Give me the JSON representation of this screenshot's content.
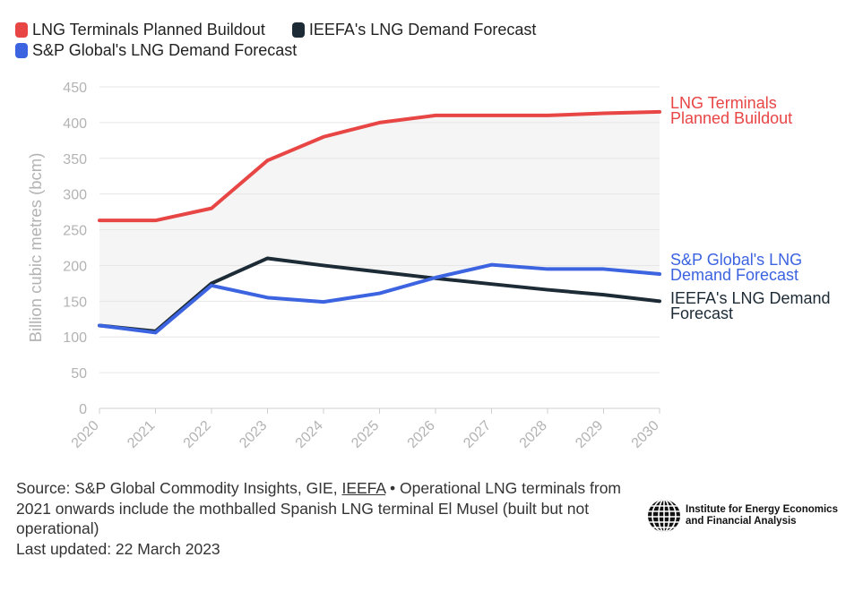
{
  "chart_data": {
    "type": "line",
    "title": "",
    "xlabel": "",
    "ylabel": "Billion cubic metres (bcm)",
    "ylim": [
      0,
      450
    ],
    "yticks": [
      0,
      50,
      100,
      150,
      200,
      250,
      300,
      350,
      400,
      450
    ],
    "x": [
      "2020",
      "2021",
      "2022",
      "2023",
      "2024",
      "2025",
      "2026",
      "2027",
      "2028",
      "2029",
      "2030"
    ],
    "grid": true,
    "legend_position": "top-left",
    "series": [
      {
        "name": "LNG Terminals Planned Buildout",
        "end_label": [
          "LNG Terminals",
          "Planned Buildout"
        ],
        "color": "#e84545",
        "values": [
          263,
          263,
          280,
          347,
          380,
          400,
          410,
          410,
          410,
          413,
          415
        ]
      },
      {
        "name": "IEEFA's LNG Demand Forecast",
        "end_label": [
          "IEEFA's LNG Demand",
          "Forecast"
        ],
        "color": "#1c2b35",
        "values": [
          116,
          108,
          175,
          210,
          200,
          191,
          182,
          174,
          166,
          159,
          150
        ]
      },
      {
        "name": "S&P Global's LNG Demand Forecast",
        "end_label": [
          "S&P Global's LNG",
          "Demand Forecast"
        ],
        "color": "#3c63e0",
        "values": [
          116,
          106,
          172,
          155,
          149,
          161,
          183,
          201,
          195,
          195,
          188
        ]
      }
    ]
  },
  "footer": {
    "source_prefix": "Source: S&P Global Commodity Insights, GIE,",
    "source_link": "IEEFA",
    "source_note": "• Operational LNG terminals from 2021 onwards include the mothballed Spanish LNG terminal El Musel (built but not operational)",
    "last_updated": "Last updated: 22 March 2023"
  },
  "logo": {
    "line1": "Institute for Energy Economics",
    "line2": "and Financial Analysis"
  }
}
